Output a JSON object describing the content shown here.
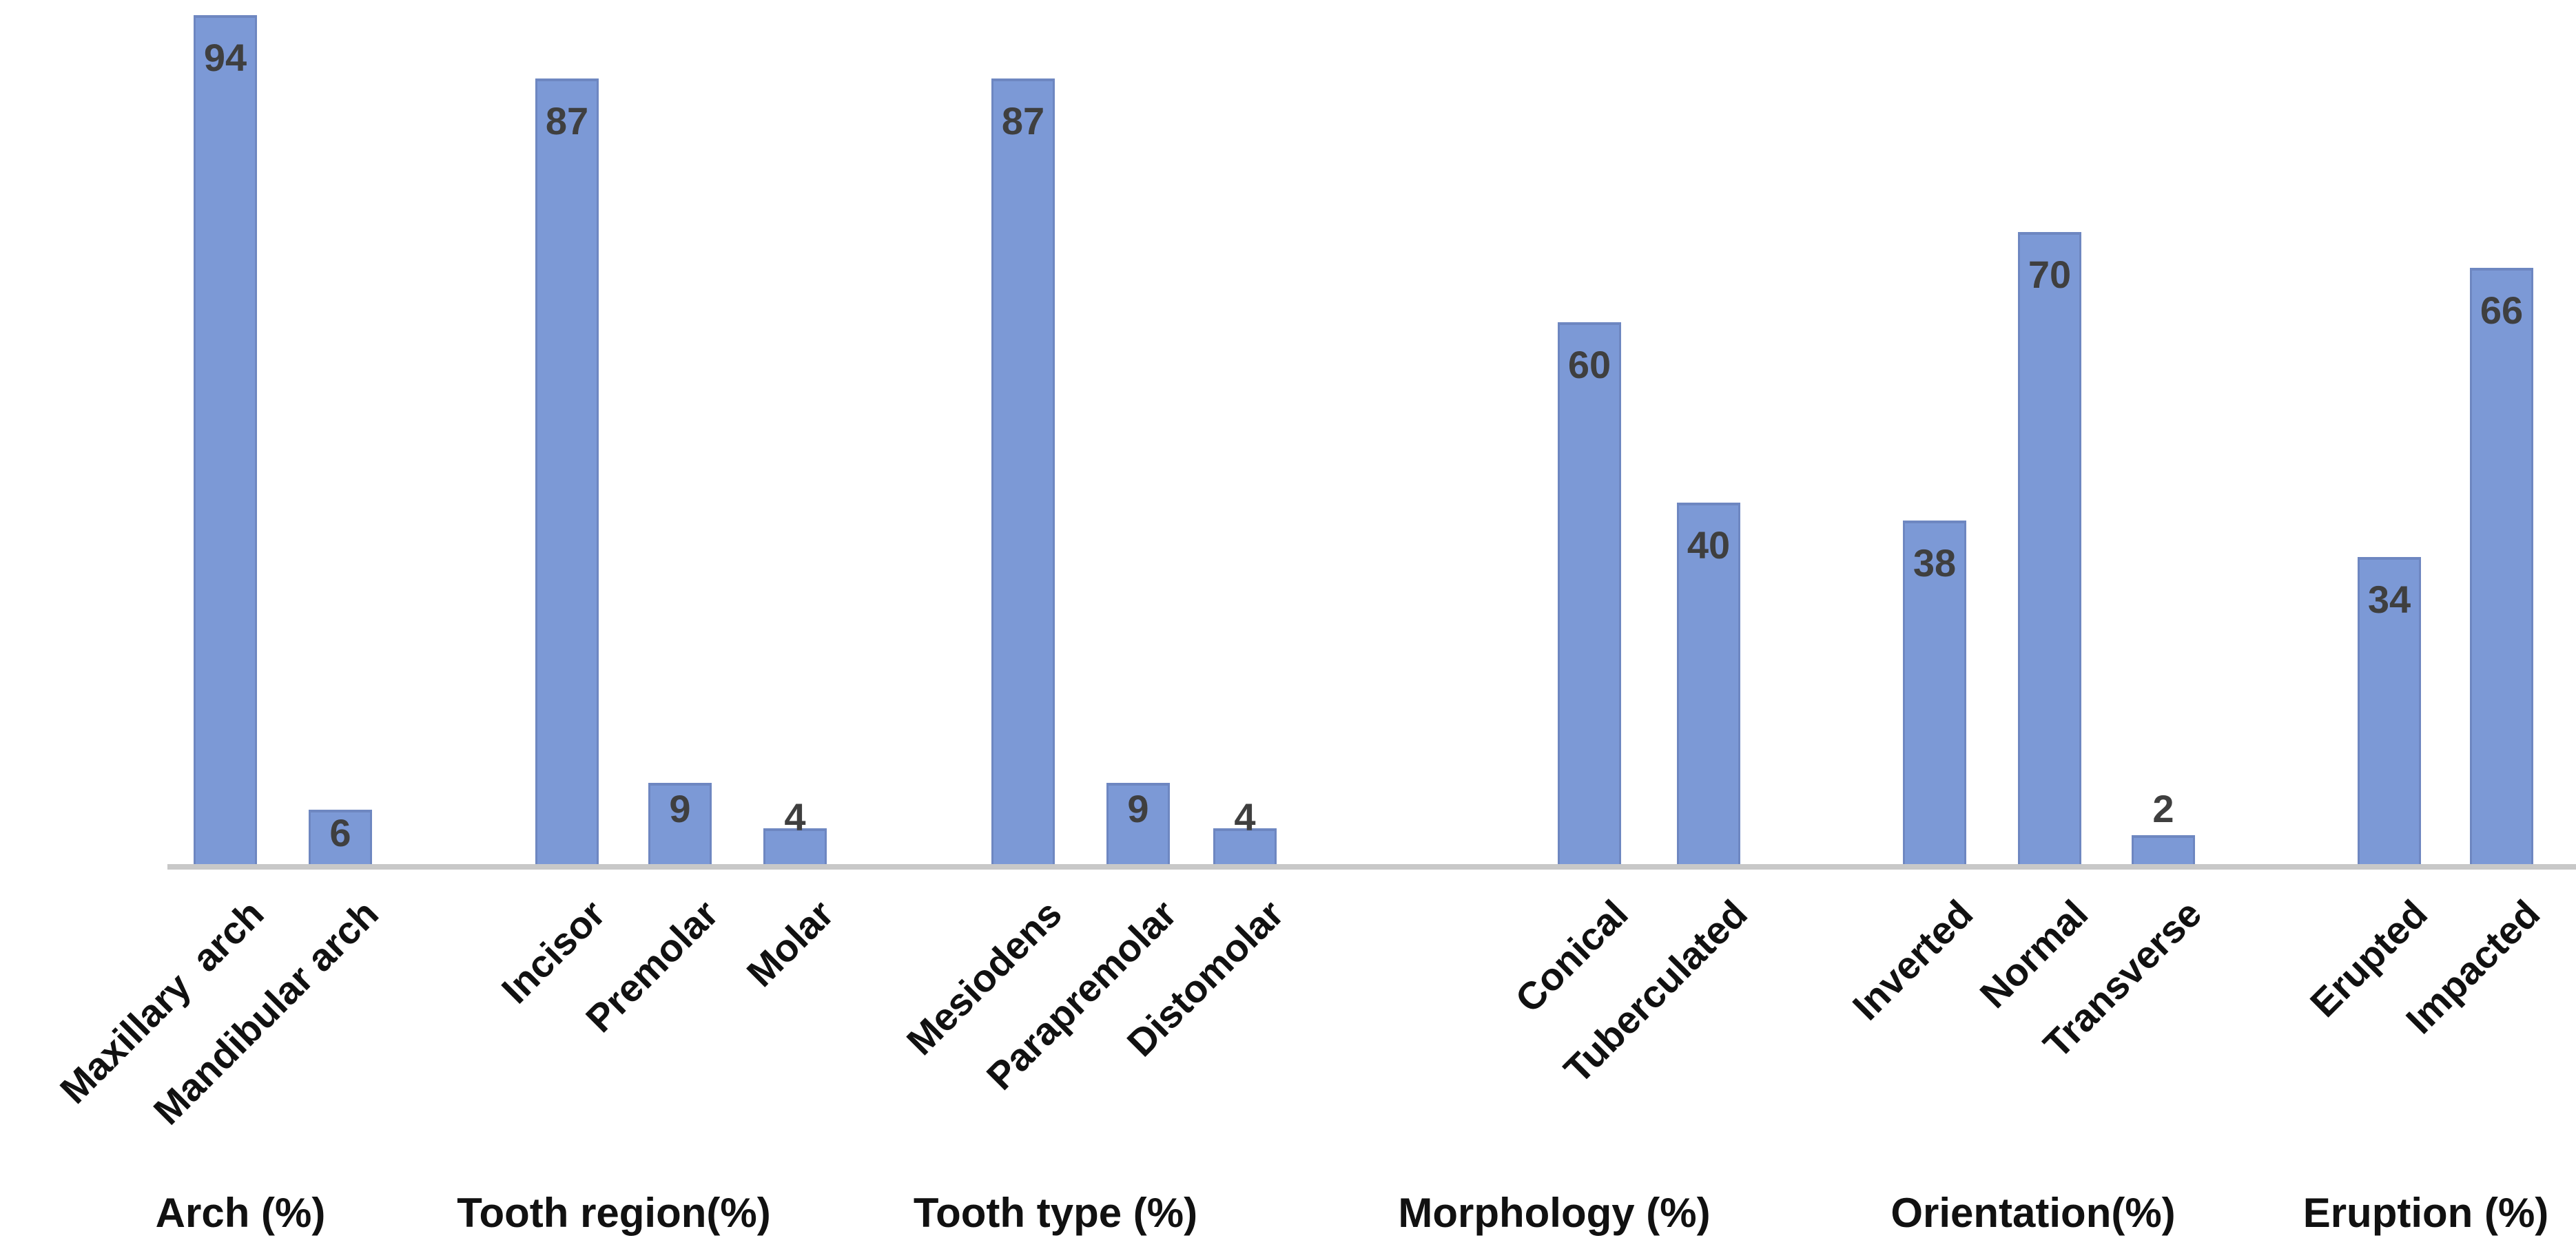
{
  "chart_data": {
    "type": "bar",
    "title": "",
    "xlabel": "",
    "ylabel": "",
    "ylim": [
      0,
      95
    ],
    "grid": false,
    "legend": false,
    "y_axis_visible": false,
    "value_labels_shown": true,
    "bar_color": "#7c99d6",
    "bar_edge_color": "#6e87c1",
    "value_label_color": "#3f3f3f",
    "category_label_color": "#111111",
    "group_label_color": "#111111",
    "axis_line_color": "#c8c8c8",
    "groups": [
      {
        "label": "Arch (%)",
        "bars": [
          {
            "category": "Maxillary  arch",
            "value": 94
          },
          {
            "category": "Mandibular arch",
            "value": 6
          }
        ]
      },
      {
        "label": "Tooth region(%)",
        "bars": [
          {
            "category": "Incisor",
            "value": 87
          },
          {
            "category": "Premolar",
            "value": 9
          },
          {
            "category": "Molar",
            "value": 4
          }
        ]
      },
      {
        "label": "Tooth type (%)",
        "bars": [
          {
            "category": "Mesiodens",
            "value": 87
          },
          {
            "category": "Parapremolar",
            "value": 9
          },
          {
            "category": "Distomolar",
            "value": 4
          }
        ]
      },
      {
        "label": "Morphology (%)",
        "bars": [
          {
            "category": "Conical",
            "value": 60
          },
          {
            "category": "Tuberculated",
            "value": 40
          }
        ]
      },
      {
        "label": "Orientation(%)",
        "bars": [
          {
            "category": "Inverted",
            "value": 38
          },
          {
            "category": "Normal",
            "value": 70
          },
          {
            "category": "Transverse",
            "value": 2
          }
        ]
      },
      {
        "label": "Eruption (%)",
        "bars": [
          {
            "category": "Erupted",
            "value": 34
          },
          {
            "category": "Impacted",
            "value": 66
          }
        ]
      }
    ]
  }
}
